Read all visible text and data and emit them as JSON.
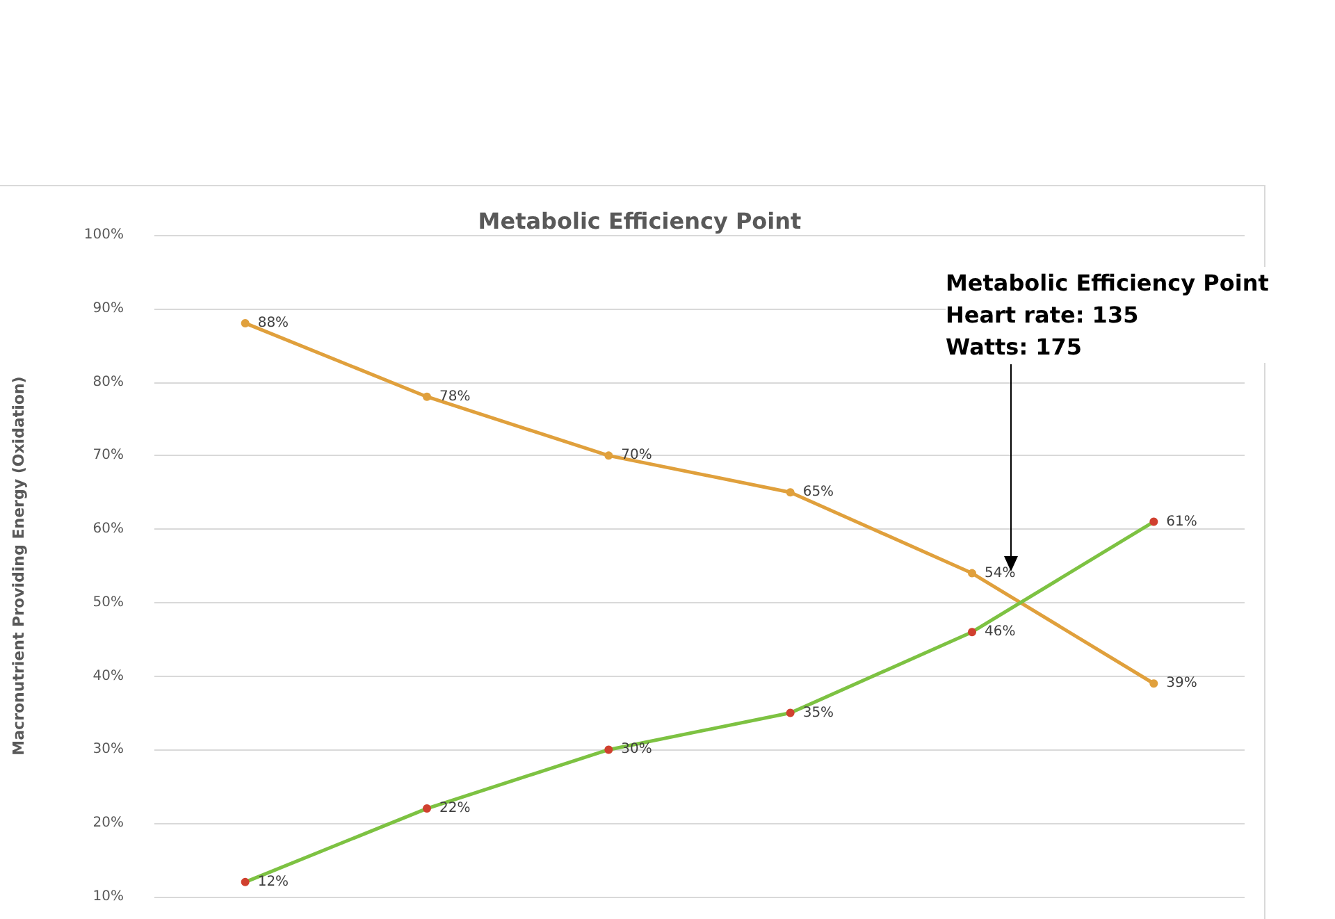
{
  "chart_data": {
    "type": "line",
    "title": "Metabolic Efficiency Point",
    "ylabel": "Macronutrient Providing Energy (Oxidation)",
    "categories": [
      null,
      null,
      null,
      null,
      null,
      null
    ],
    "series": [
      {
        "color": "#e0a03c",
        "values": [
          88,
          78,
          70,
          65,
          54,
          39
        ],
        "value_labels": [
          "88%",
          "78%",
          "70%",
          "65%",
          "54%",
          "39%"
        ]
      },
      {
        "color": "#7dc242",
        "colors": [
          "#d0402f",
          "#d0402f",
          "#d0402f",
          "#d0402f",
          "#d0402f",
          "#d0402f"
        ],
        "values": [
          12,
          22,
          30,
          35,
          46,
          61
        ],
        "value_labels": [
          "12%",
          "22%",
          "30%",
          "35%",
          "46%",
          "61%"
        ]
      }
    ],
    "ylim": [
      10,
      100
    ],
    "yticks": [
      {
        "value": 10,
        "label": "10%"
      },
      {
        "value": 20,
        "label": "20%"
      },
      {
        "value": 30,
        "label": "30%"
      },
      {
        "value": 40,
        "label": "40%"
      },
      {
        "value": 50,
        "label": "50%"
      },
      {
        "value": 60,
        "label": "60%"
      },
      {
        "value": 70,
        "label": "70%"
      },
      {
        "value": 80,
        "label": "80%"
      },
      {
        "value": 90,
        "label": "90%"
      },
      {
        "value": 100,
        "label": "100%"
      }
    ],
    "annotations": [
      "Metabolic Efficiency Point\nHeart rate: 135\nWatts: 175"
    ],
    "grid": "y",
    "marker": "circle",
    "line_style": "solid",
    "tick_labels": "y"
  }
}
